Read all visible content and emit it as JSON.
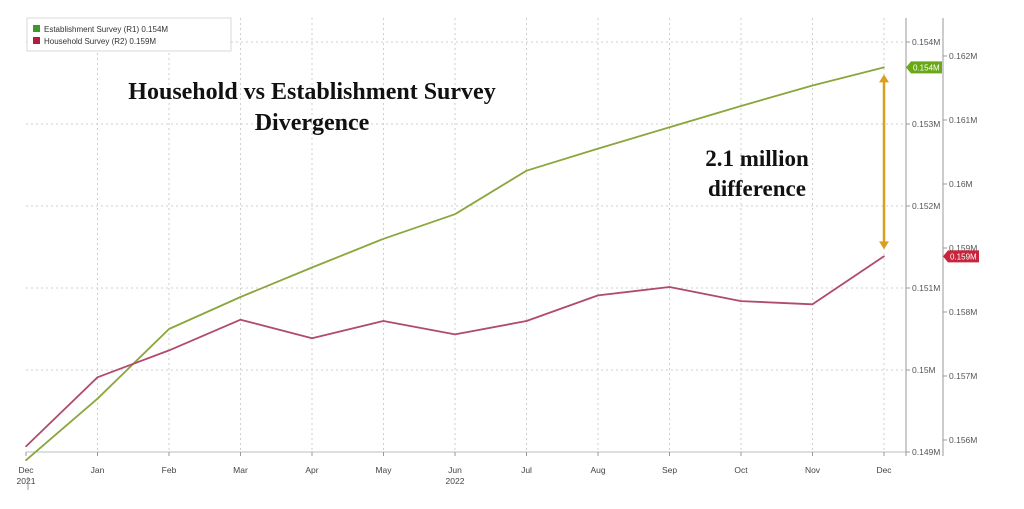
{
  "chart_data": {
    "type": "line",
    "title": "Household vs Establishment Survey\nDivergence",
    "annotation": "2.1 million\ndifference",
    "categories": [
      "Dec",
      "Jan",
      "Feb",
      "Mar",
      "Apr",
      "May",
      "Jun",
      "Jul",
      "Aug",
      "Sep",
      "Oct",
      "Nov",
      "Dec"
    ],
    "year_labels": [
      {
        "index": 0,
        "text": "2021"
      },
      {
        "index": 6,
        "text": "2022"
      }
    ],
    "series": [
      {
        "name": "Establishment Survey (R1)",
        "legend_value": "0.154M",
        "axis": "right1",
        "color": "#8aa63c",
        "values": [
          0.1489,
          0.14965,
          0.1505,
          0.15089,
          0.15125,
          0.1516,
          0.1519,
          0.15243,
          0.1527,
          0.15296,
          0.15322,
          0.15347,
          0.15369
        ]
      },
      {
        "name": "Household Survey (R2)",
        "legend_value": "0.159M",
        "axis": "right2",
        "color": "#b04a6e",
        "values": [
          0.1559,
          0.15698,
          0.1574,
          0.15788,
          0.15759,
          0.15786,
          0.15765,
          0.15786,
          0.15826,
          0.15839,
          0.15817,
          0.15812,
          0.15887
        ]
      }
    ],
    "axes": {
      "right1": {
        "ticks": [
          0.149,
          0.15,
          0.151,
          0.152,
          0.153,
          0.154
        ],
        "tick_labels": [
          "0.149M",
          "0.15M",
          "0.151M",
          "0.152M",
          "0.153M",
          "0.154M"
        ],
        "last_value_label": "0.154M",
        "last_value_color": "#6aa818"
      },
      "right2": {
        "ticks": [
          0.156,
          0.157,
          0.158,
          0.159,
          0.16,
          0.161,
          0.162
        ],
        "tick_labels": [
          "0.156M",
          "0.157M",
          "0.158M",
          "0.159M",
          "0.16M",
          "0.161M",
          "0.162M"
        ],
        "last_value_label": "0.159M",
        "last_value_color": "#c8243c"
      }
    },
    "arrow_color": "#d9a020",
    "grid": true,
    "legend_position": "top-left"
  }
}
